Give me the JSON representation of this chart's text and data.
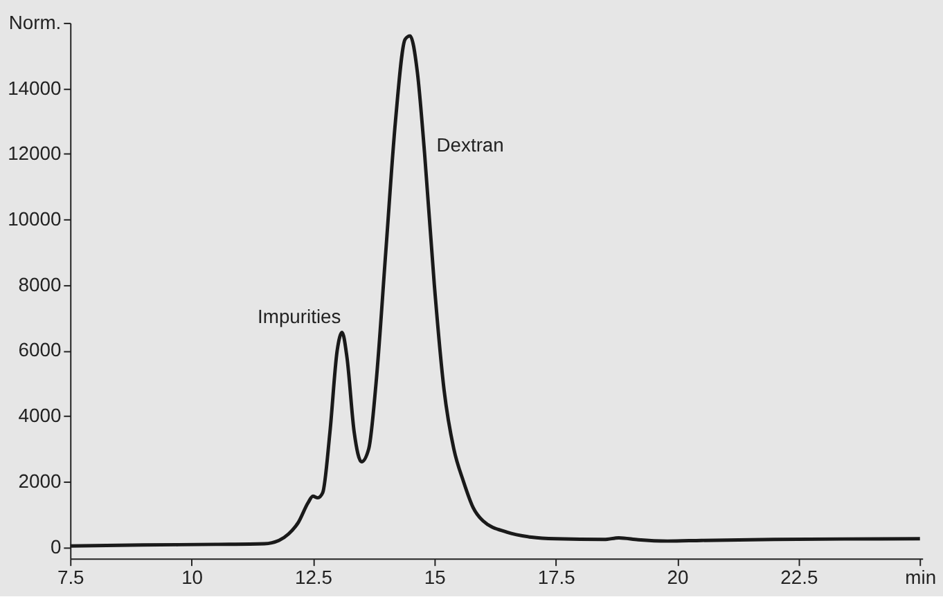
{
  "chart_data": {
    "type": "line",
    "x": [
      7.5,
      9,
      10.5,
      11.5,
      11.8,
      12.0,
      12.2,
      12.4,
      12.5,
      12.6,
      12.7,
      12.85,
      13.0,
      13.1,
      13.2,
      13.35,
      13.5,
      13.65,
      13.8,
      14.0,
      14.2,
      14.4,
      14.5,
      14.65,
      14.8,
      15.0,
      15.2,
      15.4,
      15.6,
      15.8,
      16.0,
      16.5,
      17,
      17.5,
      18.5,
      18.8,
      19.2,
      19.8,
      20.5,
      22,
      25
    ],
    "series": [
      {
        "color": "#1a1a1a",
        "values": [
          30,
          60,
          80,
          100,
          200,
          400,
          750,
          1350,
          1550,
          1500,
          1650,
          3500,
          6000,
          6550,
          5800,
          3500,
          2600,
          3000,
          5000,
          9000,
          13000,
          15500,
          15600,
          14500,
          12000,
          8000,
          4800,
          3000,
          2000,
          1200,
          800,
          450,
          300,
          250,
          230,
          280,
          220,
          180,
          200,
          230,
          250
        ]
      }
    ],
    "xlim": [
      7.5,
      25.05
    ],
    "xticks": [
      7.5,
      10,
      12.5,
      15,
      17.5,
      20,
      22.5,
      {
        "value": 25,
        "label": "min"
      }
    ],
    "ylim": [
      -350,
      16000
    ],
    "yticks": [
      0,
      2000,
      4000,
      6000,
      8000,
      10000,
      12000,
      14000,
      {
        "value": 16000,
        "label": "Norm."
      }
    ],
    "annotations": [
      "Impurities",
      "Dextran"
    ],
    "grid": false,
    "marker": "none",
    "line_style": "solid"
  }
}
